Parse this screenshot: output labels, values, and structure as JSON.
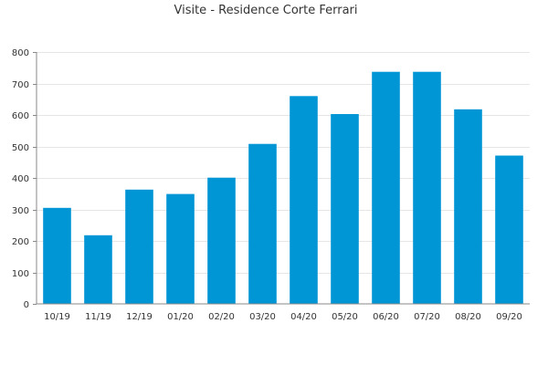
{
  "chart_data": {
    "type": "bar",
    "title": "Visite - Residence Corte Ferrari",
    "xlabel": "",
    "ylabel": "",
    "categories": [
      "10/19",
      "11/19",
      "12/19",
      "01/20",
      "02/20",
      "03/20",
      "04/20",
      "05/20",
      "06/20",
      "07/20",
      "08/20",
      "09/20"
    ],
    "values": [
      305,
      218,
      363,
      349,
      401,
      508,
      660,
      603,
      737,
      737,
      618,
      471
    ],
    "ylim": [
      0,
      800
    ],
    "yticks": [
      0,
      100,
      200,
      300,
      400,
      500,
      600,
      700,
      800
    ],
    "grid": true,
    "bar_color": "#0096d6"
  }
}
